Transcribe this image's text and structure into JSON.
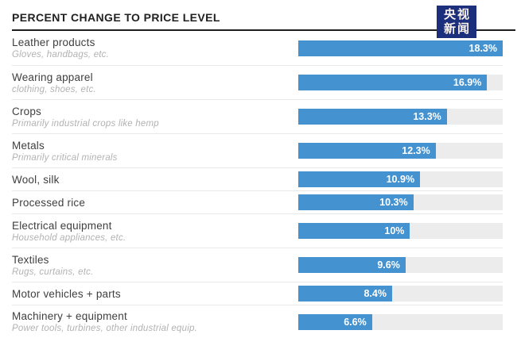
{
  "header": {
    "title": "PERCENT CHANGE TO PRICE LEVEL"
  },
  "logo": {
    "name": "cctv-news",
    "line1": "央视",
    "line2": "新闻"
  },
  "colors": {
    "bar": "#4592d0",
    "track": "#ececec",
    "title": "#212121",
    "rule": "#1d1d1d",
    "label": "#3f3f3f",
    "subtitle": "#b2b2b2",
    "divider": "#e8e8e8",
    "value_text": "#ffffff",
    "logo_bg": "#1c2f7c",
    "logo_text": "#faf3ec"
  },
  "chart_data": {
    "type": "bar",
    "orientation": "horizontal",
    "title": "PERCENT CHANGE TO PRICE LEVEL",
    "xlabel": "",
    "ylabel": "",
    "xlim": [
      0,
      18.3
    ],
    "max_value": 18.3,
    "grid": false,
    "legend": false,
    "categories": [
      "Leather products",
      "Wearing apparel",
      "Crops",
      "Metals",
      "Wool, silk",
      "Processed rice",
      "Electrical equipment",
      "Textiles",
      "Motor vehicles + parts",
      "Machinery + equipment"
    ],
    "subtitles": [
      "Gloves, handbags, etc.",
      "clothing, shoes, etc.",
      "Primarily industrial crops like hemp",
      "Primarily critical minerals",
      "",
      "",
      "Household appliances, etc.",
      "Rugs, curtains, etc.",
      "",
      "Power tools, turbines, other industrial equip."
    ],
    "values": [
      18.3,
      16.9,
      13.3,
      12.3,
      10.9,
      10.3,
      10,
      9.6,
      8.4,
      6.6
    ],
    "value_labels": [
      "18.3%",
      "16.9%",
      "13.3%",
      "12.3%",
      "10.9%",
      "10.3%",
      "10%",
      "9.6%",
      "8.4%",
      "6.6%"
    ]
  }
}
